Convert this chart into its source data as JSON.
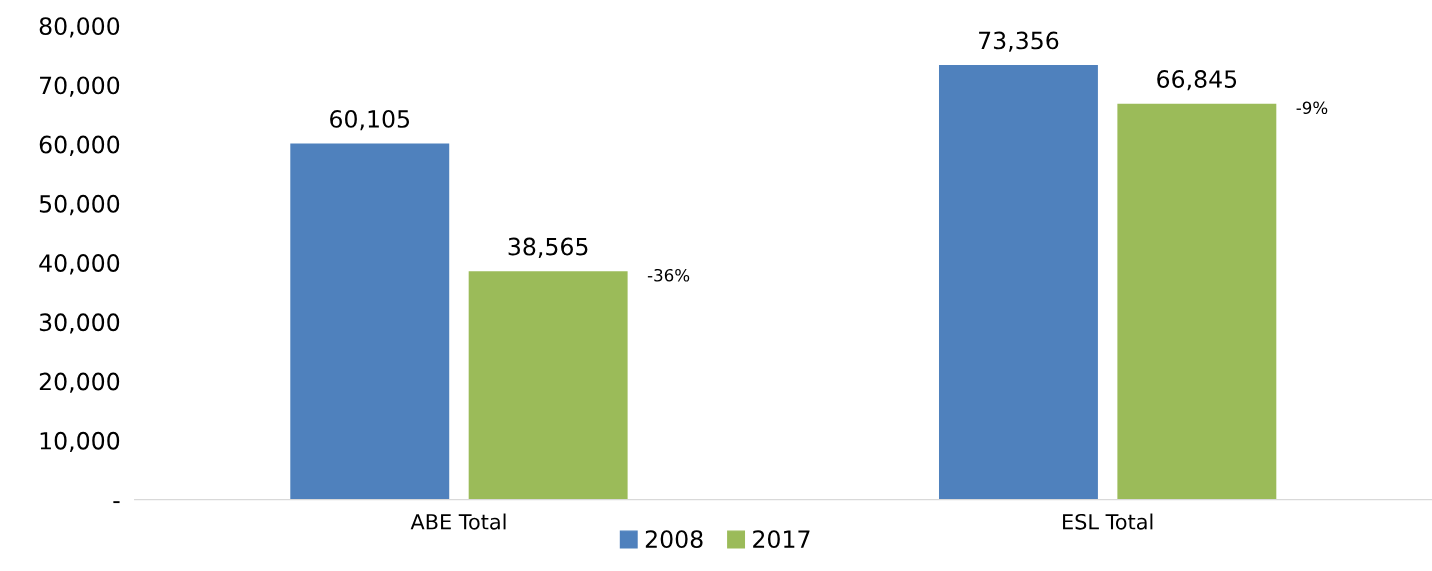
{
  "chart_data": {
    "type": "bar",
    "categories": [
      "ABE Total",
      "ESL Total"
    ],
    "series": [
      {
        "name": "2008",
        "color": "#4f81bd",
        "values": [
          60105,
          73356
        ]
      },
      {
        "name": "2017",
        "color": "#9bbb59",
        "values": [
          38565,
          66845
        ]
      }
    ],
    "ylim": [
      0,
      80000
    ],
    "yticks": [
      {
        "value": 0,
        "label": "-"
      },
      {
        "value": 10000,
        "label": "10,000"
      },
      {
        "value": 20000,
        "label": "20,000"
      },
      {
        "value": 30000,
        "label": "30,000"
      },
      {
        "value": 40000,
        "label": "40,000"
      },
      {
        "value": 50000,
        "label": "50,000"
      },
      {
        "value": 60000,
        "label": "60,000"
      },
      {
        "value": 70000,
        "label": "70,000"
      },
      {
        "value": 80000,
        "label": "80,000"
      }
    ],
    "value_labels": [
      [
        "60,105",
        "73,356"
      ],
      [
        "38,565",
        "66,845"
      ]
    ],
    "annotations": [
      "-36%",
      "-9%"
    ],
    "grid": false,
    "legend": "bottom"
  }
}
